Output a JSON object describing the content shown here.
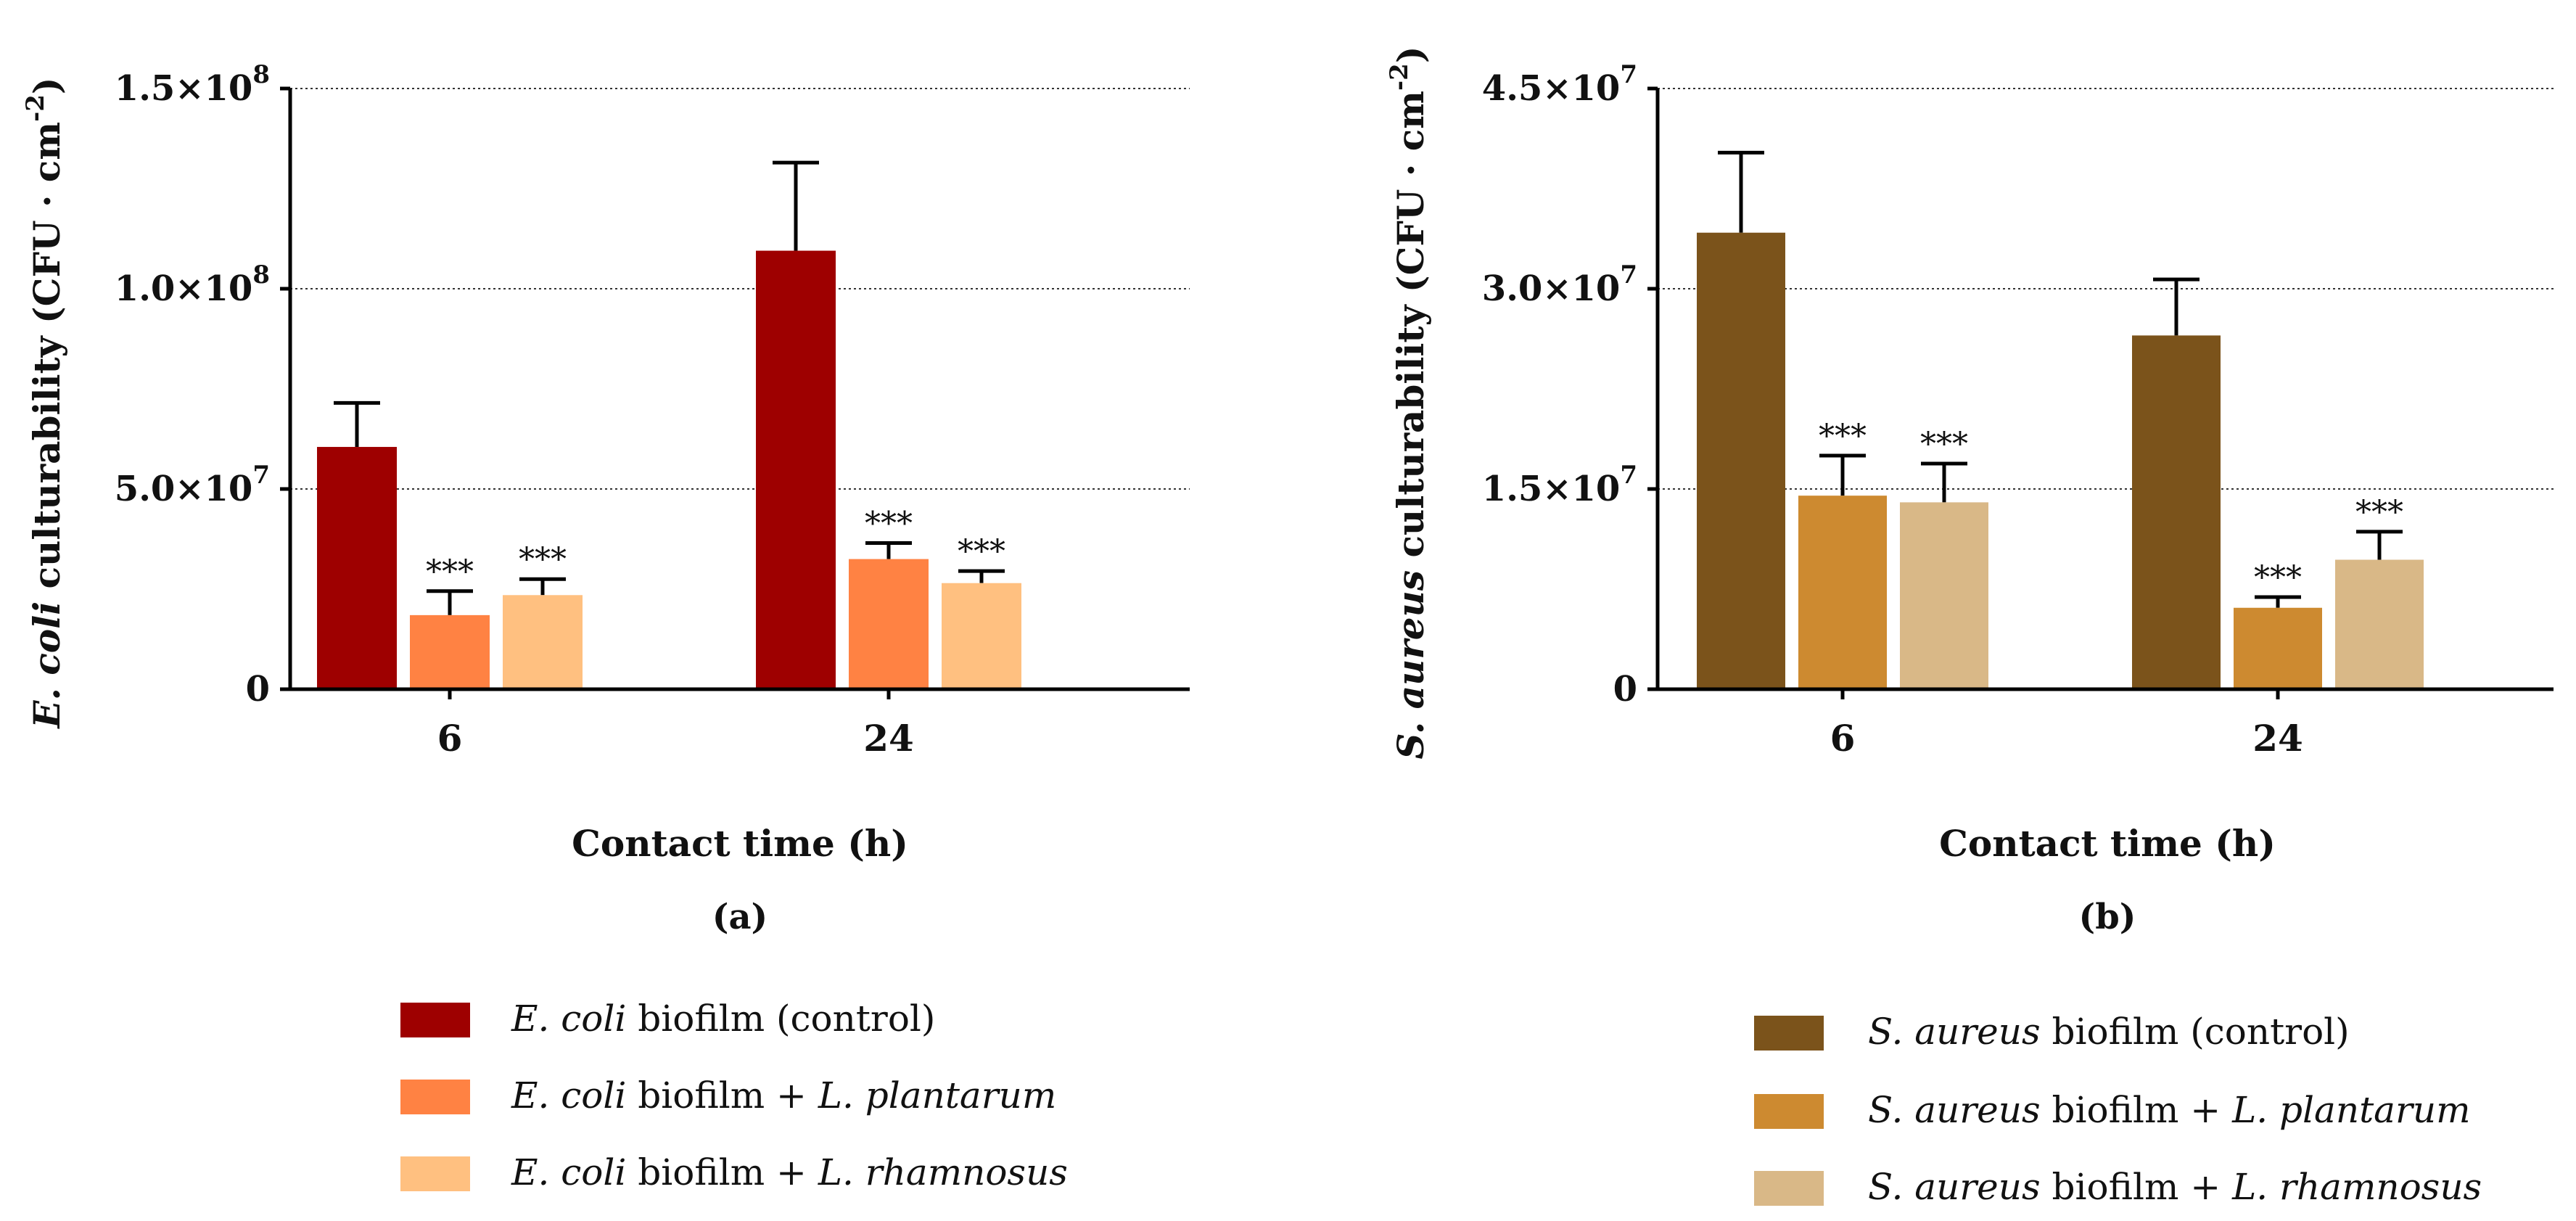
{
  "panels": {
    "a": {
      "label": "(a)",
      "xlabel": "Contact time (h)",
      "ylabel": {
        "italic": "E. coli",
        "rest": " culturability (CFU · cm",
        "exp": "-2",
        "close": ")"
      },
      "legend": [
        {
          "italic": "E. coli",
          "text": " biofilm (control)",
          "italic2": ""
        },
        {
          "italic": "E. coli",
          "text": " biofilm + ",
          "italic2": "L. plantarum"
        },
        {
          "italic": "E. coli",
          "text": " biofilm + ",
          "italic2": "L. rhamnosus"
        }
      ],
      "colors": [
        "#9e0000",
        "#ff8243",
        "#ffc080"
      ]
    },
    "b": {
      "label": "(b)",
      "xlabel": "Contact time (h)",
      "ylabel": {
        "italic": "S. aureus",
        "rest": " culturability (CFU · cm",
        "exp": "-2",
        "close": ")"
      },
      "legend": [
        {
          "italic": "S. aureus",
          "text": " biofilm (control)",
          "italic2": ""
        },
        {
          "italic": "S. aureus",
          "text": " biofilm + ",
          "italic2": "L. plantarum"
        },
        {
          "italic": "S. aureus",
          "text": " biofilm + ",
          "italic2": "L. rhamnosus"
        }
      ],
      "colors": [
        "#7b531b",
        "#cd8a30",
        "#d9b887"
      ]
    }
  },
  "chart_data": [
    {
      "type": "bar",
      "panel": "a",
      "title": "",
      "xlabel": "Contact time (h)",
      "ylabel": "E. coli culturability (CFU · cm-2)",
      "categories": [
        "6",
        "24"
      ],
      "ylim": [
        0,
        150000000
      ],
      "yticks": [
        {
          "value": 0,
          "mant": "0",
          "exp": ""
        },
        {
          "value": 50000000,
          "mant": "5.0×10",
          "exp": "7"
        },
        {
          "value": 100000000,
          "mant": "1.0×10",
          "exp": "8"
        },
        {
          "value": 150000000,
          "mant": "1.5×10",
          "exp": "8"
        }
      ],
      "grid": true,
      "series": [
        {
          "name": "E. coli biofilm (control)",
          "values": [
            60500000,
            109500000
          ],
          "errors": [
            11000000,
            22000000
          ],
          "annotations": [
            "",
            ""
          ]
        },
        {
          "name": "E. coli biofilm + L. plantarum",
          "values": [
            18500000,
            32500000
          ],
          "errors": [
            6000000,
            4000000
          ],
          "annotations": [
            "***",
            "***"
          ]
        },
        {
          "name": "E. coli biofilm + L. rhamnosus",
          "values": [
            23500000,
            26500000
          ],
          "errors": [
            4000000,
            3000000
          ],
          "annotations": [
            "***",
            "***"
          ]
        }
      ]
    },
    {
      "type": "bar",
      "panel": "b",
      "title": "",
      "xlabel": "Contact time (h)",
      "ylabel": "S. aureus culturability (CFU · cm-2)",
      "categories": [
        "6",
        "24"
      ],
      "ylim": [
        0,
        45000000
      ],
      "yticks": [
        {
          "value": 0,
          "mant": "0",
          "exp": ""
        },
        {
          "value": 15000000,
          "mant": "1.5×10",
          "exp": "7"
        },
        {
          "value": 30000000,
          "mant": "3.0×10",
          "exp": "7"
        },
        {
          "value": 45000000,
          "mant": "4.5×10",
          "exp": "7"
        }
      ],
      "grid": true,
      "series": [
        {
          "name": "S. aureus biofilm (control)",
          "values": [
            34200000,
            26500000
          ],
          "errors": [
            6000000,
            4200000
          ],
          "annotations": [
            "",
            ""
          ]
        },
        {
          "name": "S. aureus biofilm + L. plantarum",
          "values": [
            14500000,
            6100000
          ],
          "errors": [
            3000000,
            800000
          ],
          "annotations": [
            "***",
            "***"
          ]
        },
        {
          "name": "S. aureus biofilm + L. rhamnosus",
          "values": [
            14000000,
            9700000
          ],
          "errors": [
            2900000,
            2100000
          ],
          "annotations": [
            "***",
            "***"
          ]
        }
      ]
    }
  ]
}
